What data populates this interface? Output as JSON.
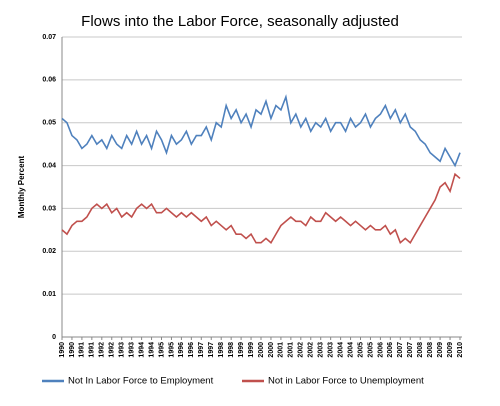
{
  "chart_data": {
    "type": "line",
    "title": "Flows into the Labor Force, seasonally adjusted",
    "y_label": "Monthly Percent",
    "x": [
      1990,
      1990.25,
      1990.5,
      1990.75,
      1991,
      1991.25,
      1991.5,
      1991.75,
      1992,
      1992.25,
      1992.5,
      1992.75,
      1993,
      1993.25,
      1993.5,
      1993.75,
      1994,
      1994.25,
      1994.5,
      1994.75,
      1995,
      1995.25,
      1995.5,
      1995.75,
      1996,
      1996.25,
      1996.5,
      1996.75,
      1997,
      1997.25,
      1997.5,
      1997.75,
      1998,
      1998.25,
      1998.5,
      1998.75,
      1999,
      1999.25,
      1999.5,
      1999.75,
      2000,
      2000.25,
      2000.5,
      2000.75,
      2001,
      2001.25,
      2001.5,
      2001.75,
      2002,
      2002.25,
      2002.5,
      2002.75,
      2003,
      2003.25,
      2003.5,
      2003.75,
      2004,
      2004.25,
      2004.5,
      2004.75,
      2005,
      2005.25,
      2005.5,
      2005.75,
      2006,
      2006.25,
      2006.5,
      2006.75,
      2007,
      2007.25,
      2007.5,
      2007.75,
      2008,
      2008.25,
      2008.5,
      2008.75,
      2009,
      2009.25,
      2009.5,
      2009.75,
      2010
    ],
    "series": [
      {
        "name": "Not In Labor Force to Employment",
        "color": "#4f81bd",
        "values": [
          0.051,
          0.05,
          0.047,
          0.046,
          0.044,
          0.045,
          0.047,
          0.045,
          0.046,
          0.044,
          0.047,
          0.045,
          0.044,
          0.047,
          0.045,
          0.048,
          0.045,
          0.047,
          0.044,
          0.048,
          0.046,
          0.043,
          0.047,
          0.045,
          0.046,
          0.048,
          0.045,
          0.047,
          0.047,
          0.049,
          0.046,
          0.05,
          0.049,
          0.054,
          0.051,
          0.053,
          0.05,
          0.052,
          0.049,
          0.053,
          0.052,
          0.055,
          0.051,
          0.054,
          0.053,
          0.056,
          0.05,
          0.052,
          0.049,
          0.051,
          0.048,
          0.05,
          0.049,
          0.051,
          0.048,
          0.05,
          0.05,
          0.048,
          0.051,
          0.049,
          0.05,
          0.052,
          0.049,
          0.051,
          0.052,
          0.054,
          0.051,
          0.053,
          0.05,
          0.052,
          0.049,
          0.048,
          0.046,
          0.045,
          0.043,
          0.042,
          0.041,
          0.044,
          0.042,
          0.04,
          0.043
        ]
      },
      {
        "name": "Not in Labor Force to Unemployment",
        "color": "#c0504d",
        "values": [
          0.025,
          0.024,
          0.026,
          0.027,
          0.027,
          0.028,
          0.03,
          0.031,
          0.03,
          0.031,
          0.029,
          0.03,
          0.028,
          0.029,
          0.028,
          0.03,
          0.031,
          0.03,
          0.031,
          0.029,
          0.029,
          0.03,
          0.029,
          0.028,
          0.029,
          0.028,
          0.029,
          0.028,
          0.027,
          0.028,
          0.026,
          0.027,
          0.026,
          0.025,
          0.026,
          0.024,
          0.024,
          0.023,
          0.024,
          0.022,
          0.022,
          0.023,
          0.022,
          0.024,
          0.026,
          0.027,
          0.028,
          0.027,
          0.027,
          0.026,
          0.028,
          0.027,
          0.027,
          0.029,
          0.028,
          0.027,
          0.028,
          0.027,
          0.026,
          0.027,
          0.026,
          0.025,
          0.026,
          0.025,
          0.025,
          0.026,
          0.024,
          0.025,
          0.022,
          0.023,
          0.022,
          0.024,
          0.026,
          0.028,
          0.03,
          0.032,
          0.035,
          0.036,
          0.034,
          0.038,
          0.037
        ]
      }
    ],
    "xlim": [
      1990,
      2010.1
    ],
    "xticks": [
      {
        "value": 1990,
        "label": "1990"
      },
      {
        "value": 1990.5,
        "label": "1990"
      },
      {
        "value": 1991,
        "label": "1991"
      },
      {
        "value": 1991.5,
        "label": "1991"
      },
      {
        "value": 1992,
        "label": "1992"
      },
      {
        "value": 1992.5,
        "label": "1992"
      },
      {
        "value": 1993,
        "label": "1993"
      },
      {
        "value": 1993.5,
        "label": "1993"
      },
      {
        "value": 1994,
        "label": "1994"
      },
      {
        "value": 1994.5,
        "label": "1994"
      },
      {
        "value": 1995,
        "label": "1995"
      },
      {
        "value": 1995.5,
        "label": "1995"
      },
      {
        "value": 1996,
        "label": "1996"
      },
      {
        "value": 1996.5,
        "label": "1996"
      },
      {
        "value": 1997,
        "label": "1997"
      },
      {
        "value": 1997.5,
        "label": "1997"
      },
      {
        "value": 1998,
        "label": "1998"
      },
      {
        "value": 1998.5,
        "label": "1998"
      },
      {
        "value": 1999,
        "label": "1999"
      },
      {
        "value": 1999.5,
        "label": "1999"
      },
      {
        "value": 2000,
        "label": "2000"
      },
      {
        "value": 2000.5,
        "label": "2000"
      },
      {
        "value": 2001,
        "label": "2001"
      },
      {
        "value": 2001.5,
        "label": "2001"
      },
      {
        "value": 2002,
        "label": "2002"
      },
      {
        "value": 2002.5,
        "label": "2002"
      },
      {
        "value": 2003,
        "label": "2003"
      },
      {
        "value": 2003.5,
        "label": "2003"
      },
      {
        "value": 2004,
        "label": "2004"
      },
      {
        "value": 2004.5,
        "label": "2004"
      },
      {
        "value": 2005,
        "label": "2005"
      },
      {
        "value": 2005.5,
        "label": "2005"
      },
      {
        "value": 2006,
        "label": "2006"
      },
      {
        "value": 2006.5,
        "label": "2006"
      },
      {
        "value": 2007,
        "label": "2007"
      },
      {
        "value": 2007.5,
        "label": "2007"
      },
      {
        "value": 2008,
        "label": "2008"
      },
      {
        "value": 2008.5,
        "label": "2008"
      },
      {
        "value": 2009,
        "label": "2009"
      },
      {
        "value": 2009.5,
        "label": "2009"
      },
      {
        "value": 2010,
        "label": "2010"
      }
    ],
    "ylim": [
      0,
      0.07
    ],
    "yticks": [
      0,
      0.01,
      0.02,
      0.03,
      0.04,
      0.05,
      0.06,
      0.07
    ],
    "grid": true,
    "legend": "bottom"
  }
}
